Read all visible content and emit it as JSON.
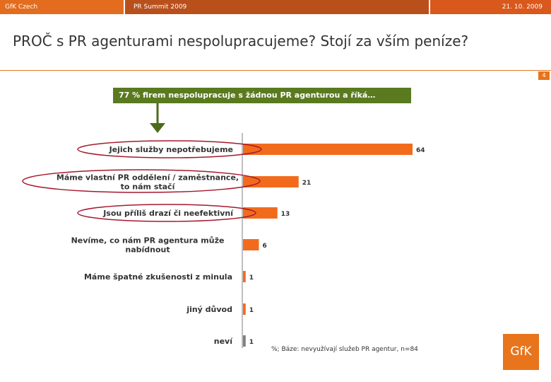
{
  "header": {
    "left": "GfK Czech",
    "middle": "PR Summit 2009",
    "right": "21. 10. 2009"
  },
  "title": "PROČ s PR agenturami nespolupracujeme? Stojí za vším peníze?",
  "page_number": "4",
  "banner": "77 % firem nespolupracuje s žádnou PR agenturou a říká…",
  "footnote": "%; Báze: nevyužívají služeb PR agentur, n=84",
  "logo": "GfK",
  "colors": {
    "bar": "#f26b1d",
    "bar_last": "#7f7f7f",
    "banner": "#5a7a1f",
    "ellipse": "#a6192e",
    "arrow": "#4c6b1a"
  },
  "chart_data": {
    "type": "bar",
    "orientation": "horizontal",
    "categories": [
      [
        "Jejich služby nepotřebujeme"
      ],
      [
        "Máme vlastní PR oddělení / zaměstnance,",
        "to nám stačí"
      ],
      [
        "Jsou příliš drazí či neefektivní"
      ],
      [
        "Nevíme, co nám PR agentura může",
        "nabídnout"
      ],
      [
        "Máme špatné zkušenosti z minula"
      ],
      [
        "jiný důvod"
      ],
      [
        "neví"
      ]
    ],
    "values": [
      64,
      21,
      13,
      6,
      1,
      1,
      1
    ],
    "highlighted": [
      0,
      1,
      2
    ],
    "xlim": [
      0,
      100
    ],
    "grid": false,
    "legend": "none"
  }
}
